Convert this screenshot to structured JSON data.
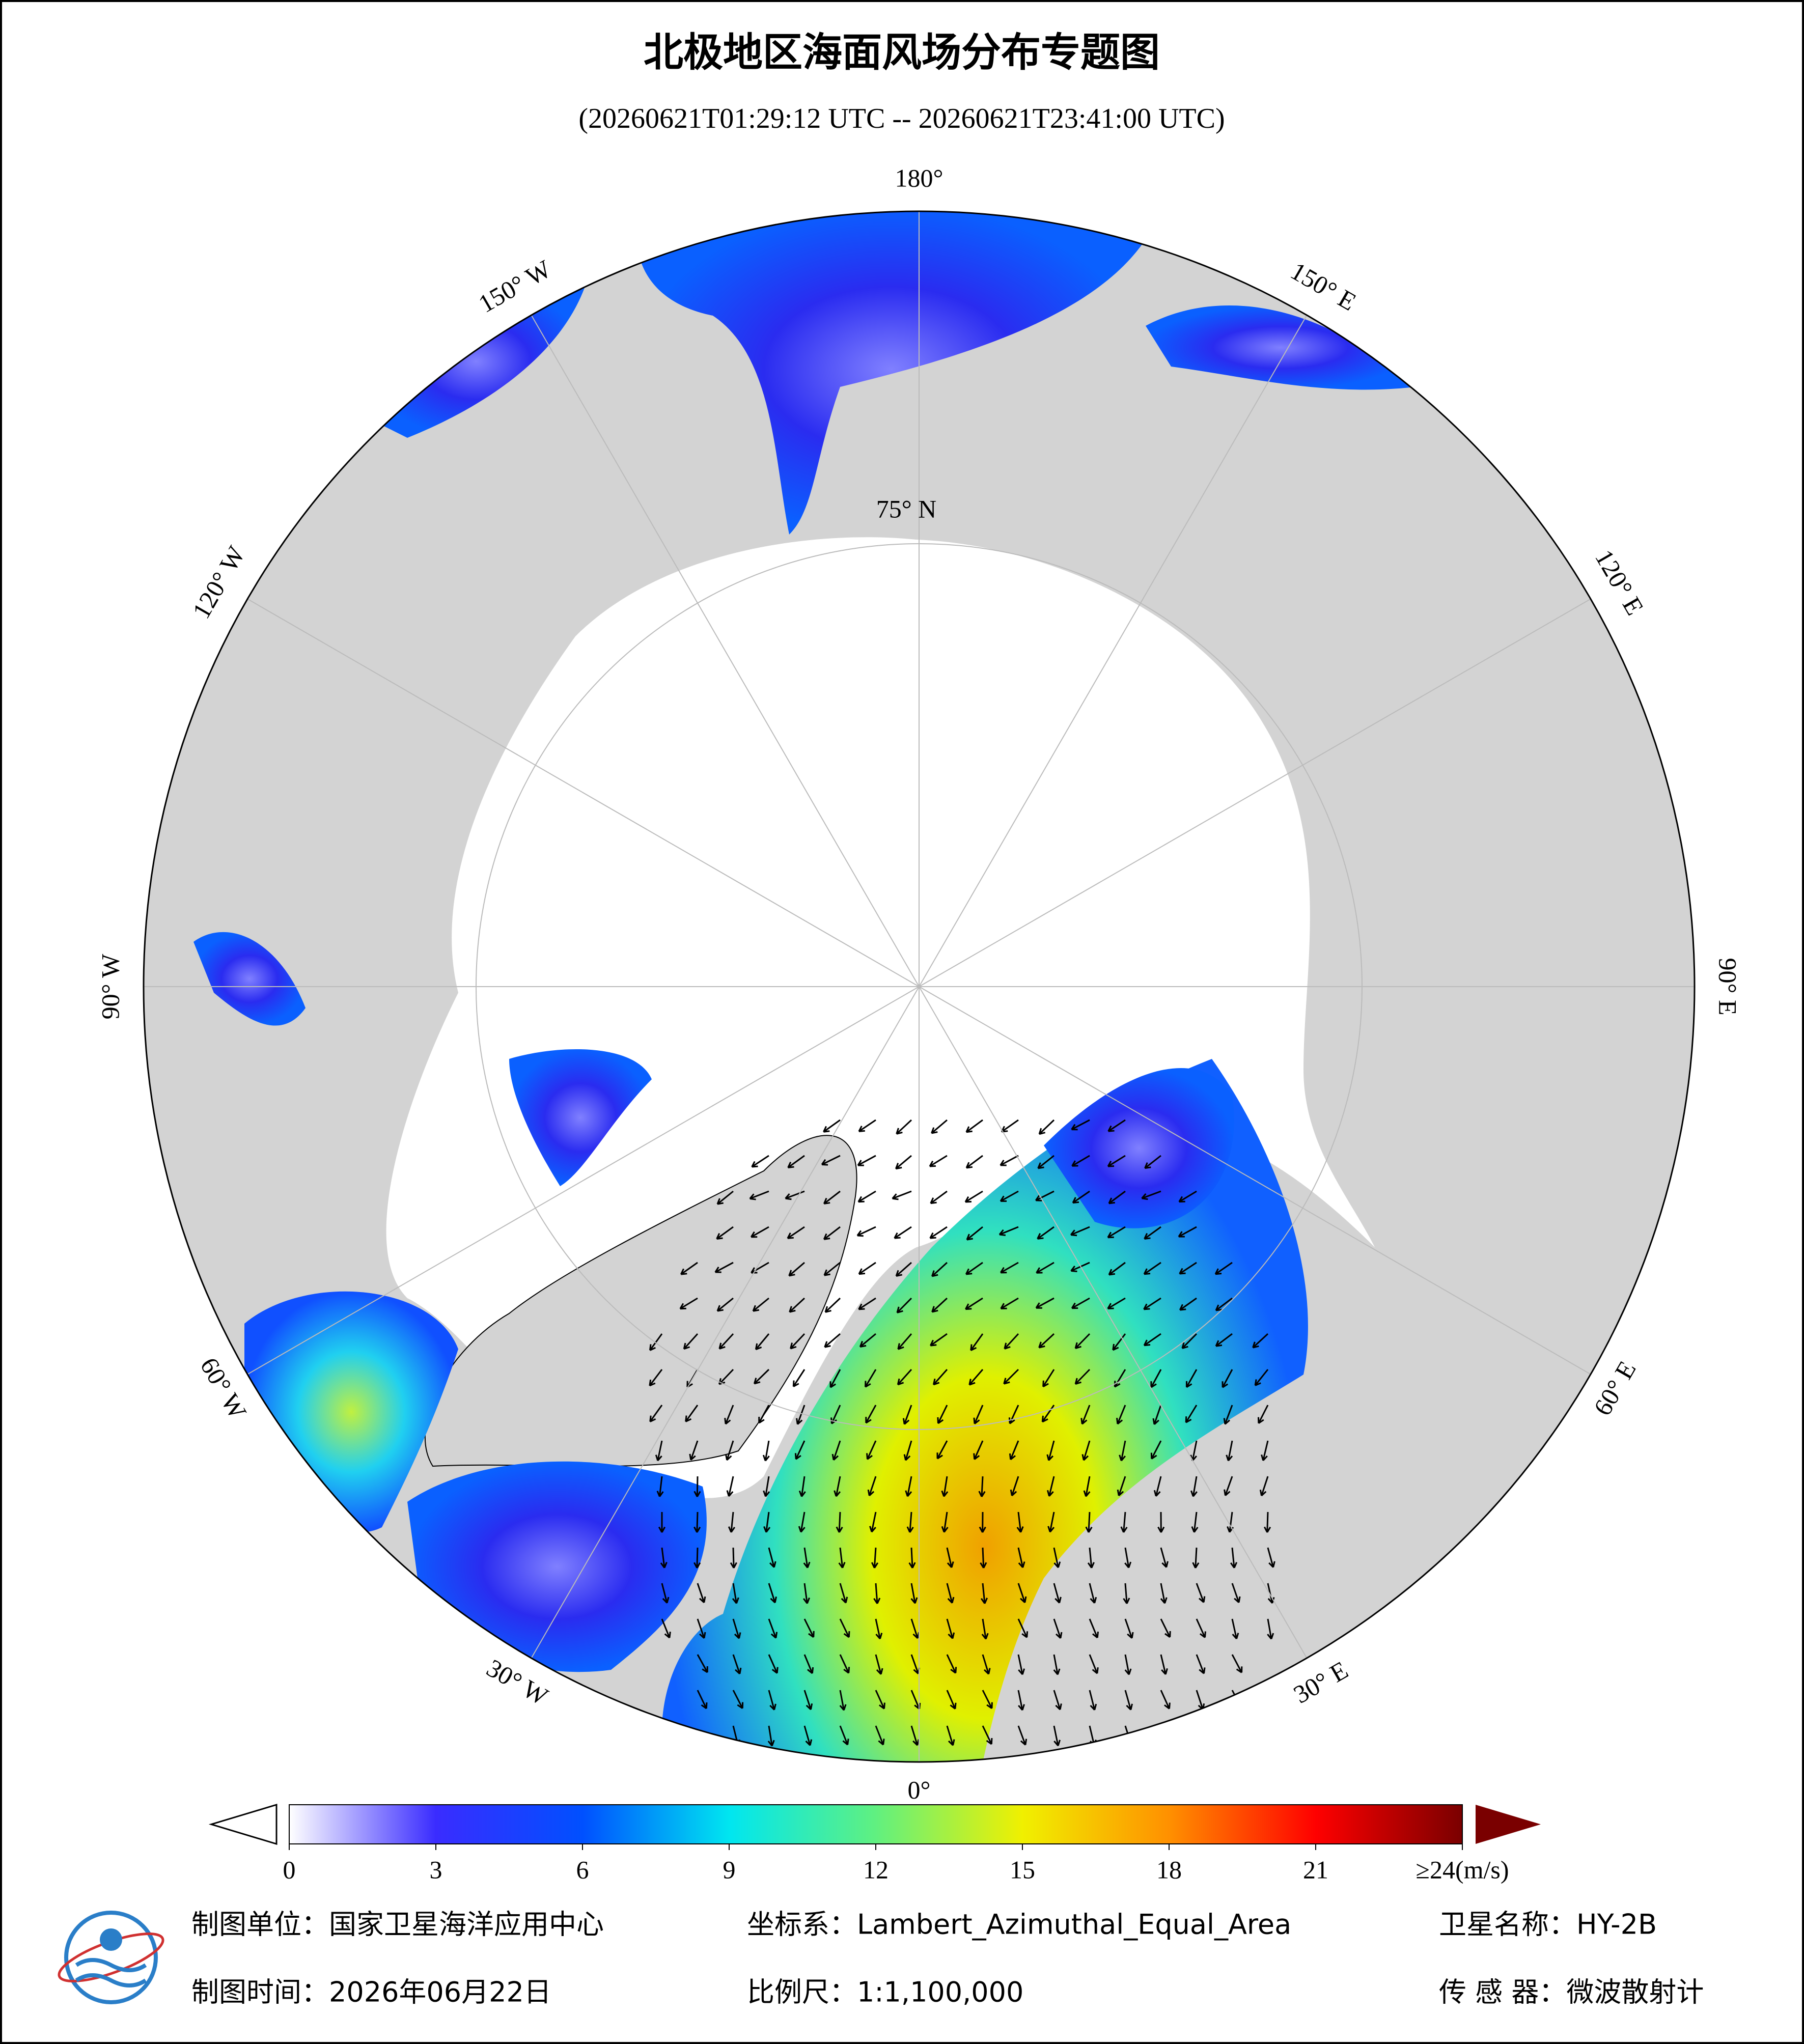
{
  "header": {
    "title": "北极地区海面风场分布专题图",
    "subtitle": "(20260621T01:29:12 UTC -- 20260621T23:41:00 UTC)"
  },
  "map": {
    "longitudes": [
      {
        "value": 180,
        "label": "180°"
      },
      {
        "value": 150,
        "label": "150° E"
      },
      {
        "value": 120,
        "label": "120° E"
      },
      {
        "value": 90,
        "label": "90° E"
      },
      {
        "value": 60,
        "label": "60° E"
      },
      {
        "value": 30,
        "label": "30° E"
      },
      {
        "value": 0,
        "label": "0°"
      },
      {
        "value": -30,
        "label": "30° W"
      },
      {
        "value": -60,
        "label": "60° W"
      },
      {
        "value": -90,
        "label": "90° W"
      },
      {
        "value": -120,
        "label": "120° W"
      },
      {
        "value": -150,
        "label": "150° W"
      }
    ],
    "latitude_label": "75° N"
  },
  "colorbar": {
    "lim": [
      0,
      24
    ],
    "ticks": [
      0,
      3,
      6,
      9,
      12,
      15,
      18,
      {
        "value": 24,
        "label": "≥24(m/s)"
      }
    ],
    "tick_21": 21,
    "colors": [
      "#ffffff",
      "#3a2cff",
      "#0050ff",
      "#00e6f0",
      "#60f080",
      "#f0f000",
      "#ff9000",
      "#ff0000",
      "#7a0000"
    ]
  },
  "footer": {
    "unit": "制图单位：国家卫星海洋应用中心",
    "crs": "坐标系：Lambert_Azimuthal_Equal_Area",
    "satellite": "卫星名称：HY-2B",
    "date": "制图时间：2026年06月22日",
    "scale": "比例尺：1:1,100,000",
    "sensor": "传 感 器：微波散射计"
  }
}
